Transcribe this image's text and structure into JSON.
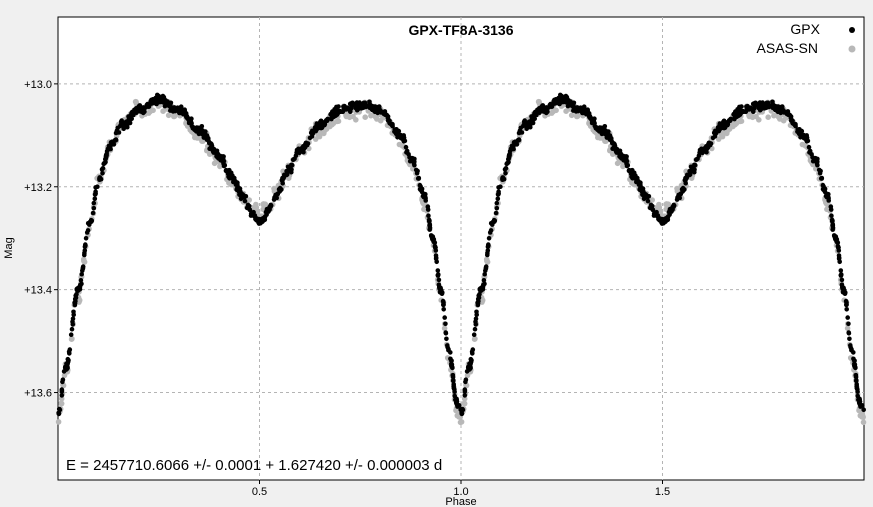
{
  "chart_data": {
    "type": "scatter",
    "title": "GPX-TF8A-3136",
    "xlabel": "Phase",
    "ylabel": "Mag",
    "xlim": [
      0.0,
      2.0
    ],
    "ylim": [
      12.87,
      13.77
    ],
    "y_inverted": true,
    "grid": true,
    "legend_position": "top-right",
    "x_ticks": [
      0.5,
      1.0,
      1.5
    ],
    "x_tick_labels": [
      "0.5",
      "1.0",
      "1.5"
    ],
    "y_ticks": [
      13.0,
      13.2,
      13.4,
      13.6
    ],
    "y_tick_labels": [
      "+13.0",
      "+13.2",
      "+13.4",
      "+13.6"
    ],
    "ephemeris": "E = 2457710.6066 +/- 0.0001 + 1.627420 +/- 0.000003 d",
    "series": [
      {
        "name": "GPX",
        "color": "#000000",
        "curve_phase": [
          0.0,
          0.02,
          0.05,
          0.08,
          0.1,
          0.13,
          0.16,
          0.2,
          0.25,
          0.3,
          0.35,
          0.4,
          0.43,
          0.46,
          0.48,
          0.5,
          0.52,
          0.54,
          0.57,
          0.6,
          0.65,
          0.7,
          0.75,
          0.8,
          0.85,
          0.88,
          0.91,
          0.93,
          0.95,
          0.97,
          0.99,
          1.0
        ],
        "curve_mag": [
          13.64,
          13.55,
          13.4,
          13.27,
          13.19,
          13.12,
          13.08,
          13.05,
          13.03,
          13.05,
          13.09,
          13.14,
          13.18,
          13.22,
          13.25,
          13.27,
          13.25,
          13.22,
          13.17,
          13.13,
          13.08,
          13.05,
          13.04,
          13.05,
          13.1,
          13.15,
          13.22,
          13.3,
          13.4,
          13.52,
          13.62,
          13.63
        ]
      },
      {
        "name": "ASAS-SN",
        "color": "#b8b8b8",
        "curve_phase": [
          0.0,
          0.02,
          0.05,
          0.08,
          0.1,
          0.13,
          0.16,
          0.2,
          0.25,
          0.3,
          0.35,
          0.4,
          0.43,
          0.46,
          0.48,
          0.5,
          0.52,
          0.54,
          0.57,
          0.6,
          0.65,
          0.7,
          0.75,
          0.8,
          0.85,
          0.88,
          0.91,
          0.93,
          0.95,
          0.97,
          0.99,
          1.0
        ],
        "curve_mag": [
          13.66,
          13.56,
          13.41,
          13.27,
          13.19,
          13.12,
          13.08,
          13.05,
          13.04,
          13.06,
          13.1,
          13.15,
          13.19,
          13.22,
          13.24,
          13.25,
          13.24,
          13.21,
          13.17,
          13.13,
          13.09,
          13.06,
          13.05,
          13.06,
          13.11,
          13.16,
          13.23,
          13.31,
          13.41,
          13.53,
          13.63,
          13.65
        ]
      }
    ]
  }
}
